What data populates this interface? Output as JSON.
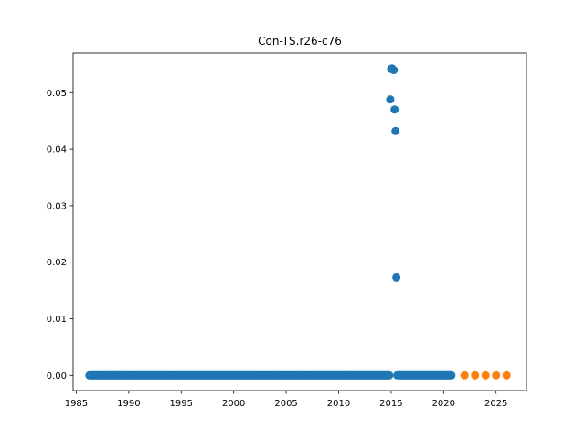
{
  "chart_data": {
    "type": "scatter",
    "title": "Con-TS.r26-c76",
    "xlabel": "",
    "ylabel": "",
    "xlim": [
      1984.7,
      2027.9
    ],
    "ylim": [
      -0.0027,
      0.057
    ],
    "xticks": [
      1985,
      1990,
      1995,
      2000,
      2005,
      2010,
      2015,
      2020,
      2025
    ],
    "yticks": [
      0.0,
      0.01,
      0.02,
      0.03,
      0.04,
      0.05
    ],
    "ytick_labels": [
      "0.00",
      "0.01",
      "0.02",
      "0.03",
      "0.04",
      "0.05"
    ],
    "grid": false,
    "legend": "none",
    "series": [
      {
        "color": "#1f77b4",
        "baseline": {
          "x_start": 1986.25,
          "x_end": 2014.83,
          "step": 0.0833,
          "y": 0.0
        },
        "baseline2": {
          "x_start": 2015.75,
          "x_end": 2020.83,
          "step": 0.0833,
          "y": 0.0
        },
        "points": [
          [
            2014.92,
            0.0488
          ],
          [
            2015.0,
            0.0542
          ],
          [
            2015.08,
            0.0543
          ],
          [
            2015.17,
            0.0541
          ],
          [
            2015.25,
            0.054
          ],
          [
            2015.33,
            0.047
          ],
          [
            2015.42,
            0.0432
          ],
          [
            2015.5,
            0.0173
          ],
          [
            2015.58,
            0.0
          ]
        ]
      },
      {
        "color": "#ff7f0e",
        "points": [
          [
            2022.0,
            0.0
          ],
          [
            2023.0,
            0.0
          ],
          [
            2024.0,
            0.0
          ],
          [
            2025.0,
            0.0
          ],
          [
            2026.0,
            0.0
          ]
        ]
      }
    ]
  }
}
